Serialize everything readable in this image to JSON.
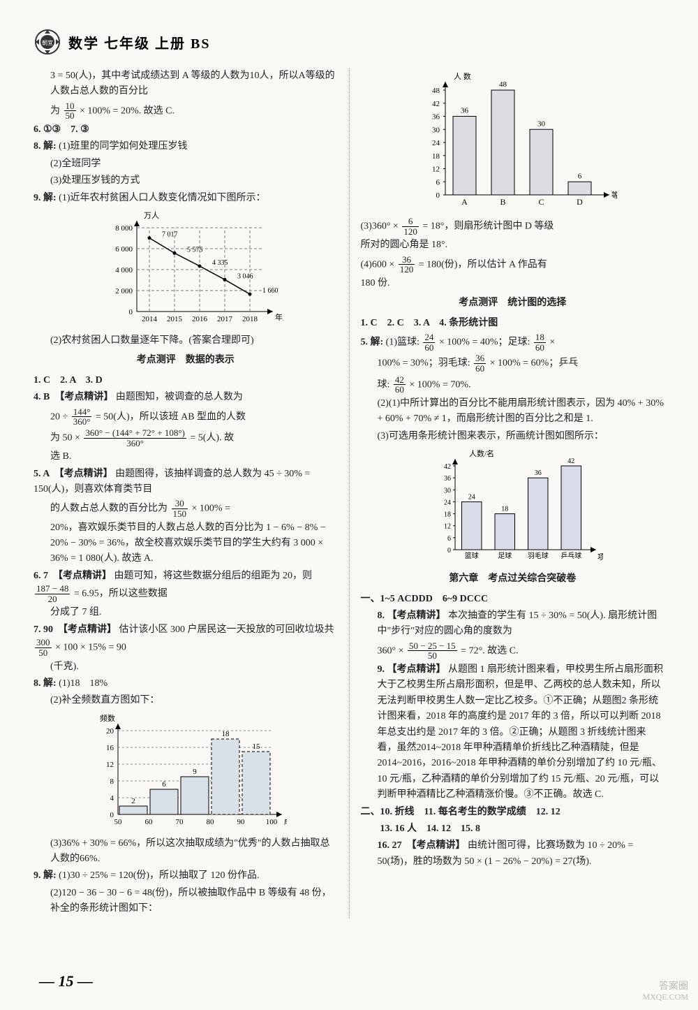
{
  "header": {
    "title": "数学 七年级 上册 BS"
  },
  "left": {
    "intro1": "3 = 50(人)，其中考试成绩达到 A 等级的人数为10人，所以A等级的人数占总人数的百分比",
    "intro2_pre": "为 ",
    "intro2_frac_num": "10",
    "intro2_frac_den": "50",
    "intro2_post": " × 100% = 20%. 故选 C.",
    "q6": "6. ①③　7. ③",
    "q8_label": "8. 解:",
    "q8_1": "(1)班里的同学如何处理压岁钱",
    "q8_2": "(2)全班同学",
    "q8_3": "(3)处理压岁钱的方式",
    "q9_label": "9. 解:",
    "q9_1": "(1)近年农村贫困人口人数变化情况如下图所示：",
    "line_chart": {
      "type": "line",
      "unit": "万人",
      "xaxis_label": "年度",
      "y_ticks": [
        0,
        2000,
        4000,
        6000,
        8000
      ],
      "x_labels": [
        "2014",
        "2015",
        "2016",
        "2017",
        "2018"
      ],
      "values": [
        7017,
        5575,
        4335,
        3046,
        1660
      ],
      "value_labels": [
        "7 017",
        "5 575",
        "4 335",
        "3 046",
        "1 660"
      ],
      "line_color": "#000000",
      "grid_color": "#7a7a7a",
      "dash": "4 3",
      "bg": "#faf9f5"
    },
    "q9_2": "(2)农村贫困人口数量逐年下降。(答案合理即可)",
    "sec1_title": "考点测评　数据的表示",
    "sec1_a1": "1. C　2. A　3. D",
    "sec1_q4_label": "4. B　【考点精讲】",
    "sec1_q4_1_pre": "由题图知，被调查的总人数为",
    "sec1_q4_2_pre": "20 ÷ ",
    "sec1_q4_2_num": "144°",
    "sec1_q4_2_den": "360°",
    "sec1_q4_2_mid": " = 50(人)，所以该班 AB 型血的人数",
    "sec1_q4_3_pre": "为 50 × ",
    "sec1_q4_3_num": "360° − (144° + 72° + 108°)",
    "sec1_q4_3_den": "360°",
    "sec1_q4_3_post": " = 5(人). 故",
    "sec1_q4_4": "选 B.",
    "sec1_q5_label": "5. A　【考点精讲】",
    "sec1_q5_1": "由题图得，该抽样调查的总人数为 45 ÷ 30% = 150(人)，则喜欢体育类节目",
    "sec1_q5_2_pre": "的人数占总人数的百分比为 ",
    "sec1_q5_2_num": "30",
    "sec1_q5_2_den": "150",
    "sec1_q5_2_post": " × 100% =",
    "sec1_q5_3": "20%，喜欢娱乐类节目的人数占总人数的百分比为 1 − 6% − 8% − 20% − 30% = 36%，故全校喜欢娱乐类节目的学生大约有 3 000 × 36% = 1 080(人). 故选 A.",
    "sec1_q6_label": "6. 7　【考点精讲】",
    "sec1_q6_1_pre": "由题可知，将这些数据分组后的组距为 20，则 ",
    "sec1_q6_1_num": "187 − 48",
    "sec1_q6_1_den": "20",
    "sec1_q6_1_post": " = 6.95，所以这些数据",
    "sec1_q6_2": "分成了 7 组.",
    "sec1_q7_label": "7. 90　【考点精讲】",
    "sec1_q7_1_pre": "估计该小区 300 户居民这一天投放的可回收垃圾共 ",
    "sec1_q7_1_num": "300",
    "sec1_q7_1_den": "50",
    "sec1_q7_1_post": " × 100 × 15% = 90",
    "sec1_q7_2": "(千克).",
    "sec1_q8_label": "8. 解:",
    "sec1_q8_1": "(1)18　18%",
    "sec1_q8_2": "(2)补全频数直方图如下：",
    "hist_chart": {
      "type": "histogram",
      "ylabel": "频数",
      "xlabel": "成绩(分)",
      "y_ticks": [
        0,
        4,
        8,
        12,
        16,
        20
      ],
      "x_ticks": [
        "50",
        "60",
        "70",
        "80",
        "90",
        "100"
      ],
      "values": [
        2,
        6,
        9,
        18,
        15
      ],
      "bar_fill": "#d8e0e8",
      "dashed_fill": "#d8e0e8",
      "grid_color": "#888888",
      "dashed_bars": [
        3,
        4
      ]
    },
    "sec1_q8_3": "(3)36% + 30% = 66%，所以这次抽取成绩为\"优秀\"的人数占抽取总人数的66%.",
    "sec1_q9_label": "9. 解:",
    "sec1_q9_1": "(1)30 ÷ 25% = 120(份)，所以抽取了 120 份作品.",
    "sec1_q9_2": "(2)120 − 36 − 30 − 6 = 48(份)，所以被抽取作品中 B 等级有 48 份，补全的条形统计图如下："
  },
  "right": {
    "bar_chart": {
      "type": "bar",
      "ylabel": "人 数",
      "xlabel": "等级",
      "y_ticks": [
        0,
        6,
        12,
        18,
        24,
        30,
        36,
        42,
        48
      ],
      "x_labels": [
        "A",
        "B",
        "C",
        "D"
      ],
      "values": [
        36,
        48,
        30,
        6
      ],
      "bar_fill": "#dcdce2",
      "border": "#000"
    },
    "r3_pre": "(3)360° × ",
    "r3_num": "6",
    "r3_den": "120",
    "r3_post": " = 18°，则扇形统计图中 D 等级",
    "r3_2": "所对的圆心角是 18°.",
    "r4_pre": "(4)600 × ",
    "r4_num": "36",
    "r4_den": "120",
    "r4_post": " = 180(份)，所以估计 A 作品有",
    "r4_2": "180 份.",
    "sec2_title": "考点测评　统计图的选择",
    "sec2_a1": "1. C　2. C　3. A　4. 条形统计图",
    "sec2_q5_label": "5. 解:",
    "sec2_q5_1_pre": "(1)篮球: ",
    "sec2_q5_1_num": "24",
    "sec2_q5_1_den": "60",
    "sec2_q5_1_mid": " × 100% = 40%；足球: ",
    "sec2_q5_1_num2": "18",
    "sec2_q5_1_den2": "60",
    "sec2_q5_1_post": " ×",
    "sec2_q5_2_pre": "100% = 30%；羽毛球: ",
    "sec2_q5_2_num": "36",
    "sec2_q5_2_den": "60",
    "sec2_q5_2_post": " × 100% = 60%；乒乓",
    "sec2_q5_3_pre": "球: ",
    "sec2_q5_3_num": "42",
    "sec2_q5_3_den": "60",
    "sec2_q5_3_post": " × 100% = 70%.",
    "sec2_q5_4": "(2)(1)中所计算出的百分比不能用扇形统计图表示，因为 40% + 30% + 60% + 70% ≠ 1，而扇形统计图的百分比之和是 1.",
    "sec2_q5_5": "(3)可选用条形统计图来表示，所画统计图如图所示：",
    "bar_chart2": {
      "type": "bar",
      "ylabel": "人数/名",
      "xlabel": "项目",
      "y_ticks": [
        0,
        6,
        12,
        18,
        24,
        30,
        36,
        42
      ],
      "x_labels": [
        "篮球",
        "足球",
        "羽毛球",
        "乒乓球"
      ],
      "values": [
        24,
        18,
        36,
        42
      ],
      "bar_fill": "#d8dce8",
      "border": "#000"
    },
    "sec3_title": "第六章　考点过关综合突破卷",
    "sec3_a1": "一、1~5 ACDDD　6~9 DCCC",
    "sec3_q8_label": "8. 【考点精讲】",
    "sec3_q8_1": "本次抽查的学生有 15 ÷ 30% = 50(人). 扇形统计图中\"步行\"对应的圆心角的度数为",
    "sec3_q8_2_pre": "360° × ",
    "sec3_q8_2_num": "50 − 25 − 15",
    "sec3_q8_2_den": "50",
    "sec3_q8_2_post": " = 72°. 故选 C.",
    "sec3_q9_label": "9. 【考点精讲】",
    "sec3_q9_1": "从题图 1 扇形统计图来看，甲校男生所占扇形面积大于乙校男生所占扇形面积，但是甲、乙两校的总人数未知，所以无法判断甲校男生人数一定比乙校多。①不正确；从题图2 条形统计图来看，2018 年的高度约是 2017 年的 3 倍，所以可以判断 2018 年总支出约是 2017 年的 3 倍。②正确；从题图 3 折线统计图来看，虽然2014~2018 年甲种酒精单价折线比乙种酒精陡，但是 2014~2016，2016~2018 年甲种酒精的单价分别增加了约 10 元/瓶、10 元/瓶，乙种酒精的单价分别增加了约 15 元/瓶、20 元/瓶，可以判断甲种酒精比乙种酒精涨价慢。③不正确。故选 C.",
    "sec3_a2": "二、10. 折线　11. 每名考生的数学成绩　12. 12",
    "sec3_a3": "　　13. 16 人　14. 12　15. 8",
    "sec3_q16_label": "16. 27　【考点精讲】",
    "sec3_q16_1": "由统计图可得，比赛场数为 10 ÷ 20% = 50(场)，胜的场数为 50 × (1 − 26% − 20%) = 27(场)."
  },
  "page_num": "15",
  "watermark1": "答案圈",
  "watermark2": "MXQE.COM"
}
